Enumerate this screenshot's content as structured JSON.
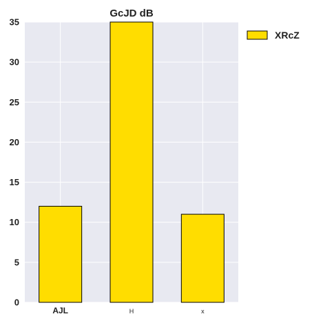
{
  "chart_data": {
    "type": "bar",
    "title": "GcJD dB",
    "xlabel": "",
    "ylabel": "",
    "categories": [
      "AJL",
      "H",
      "x"
    ],
    "series": [
      {
        "name": "XRcZ",
        "values": [
          12,
          35,
          11
        ],
        "color": "#FFDD00"
      }
    ],
    "ylim": [
      0,
      35
    ],
    "yticks": [
      0,
      5,
      10,
      15,
      20,
      25,
      30,
      35
    ],
    "grid": true,
    "legend_position": "right",
    "colors": {
      "plot_background": "#E8E9F1",
      "grid": "#FFFFFF",
      "bar_edge": "#000000"
    }
  }
}
